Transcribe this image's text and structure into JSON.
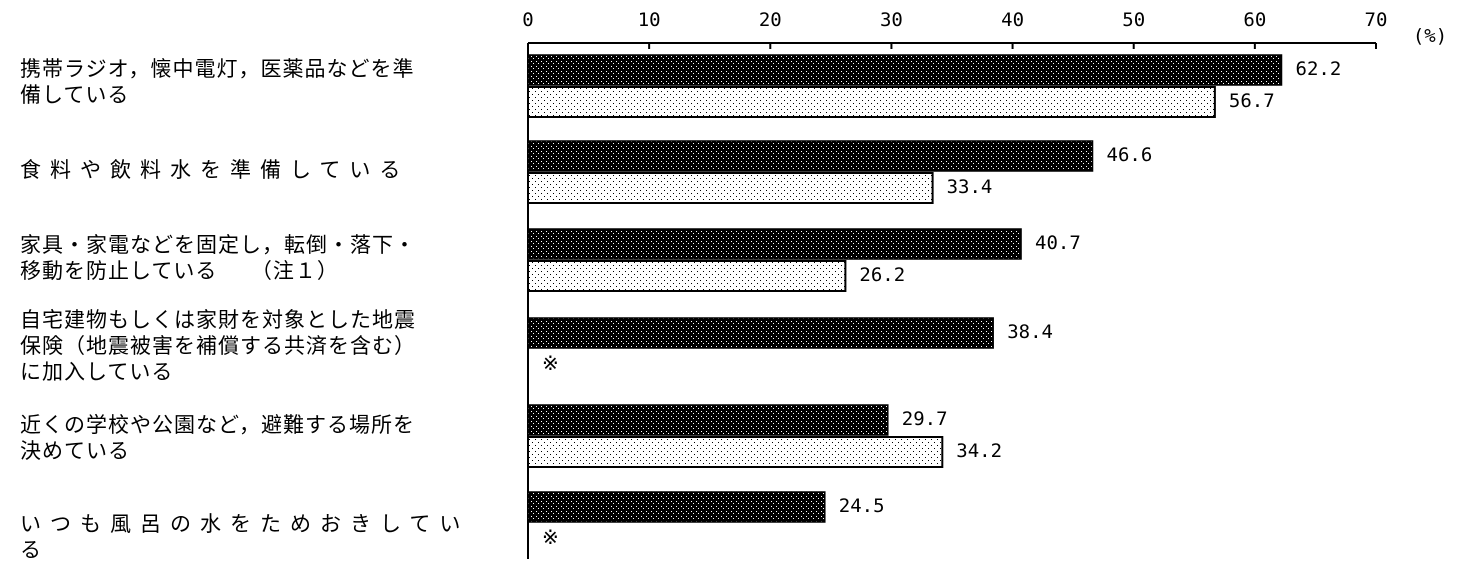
{
  "chart_data": {
    "type": "bar",
    "orientation": "horizontal",
    "unit_label": "(%)",
    "xlim": [
      0,
      70
    ],
    "x_ticks": [
      "0",
      "10",
      "20",
      "30",
      "40",
      "50",
      "60",
      "70"
    ],
    "categories": [
      "携帯ラジオ，懐中電灯，医薬品などを準\n備している",
      "食料や飲料水を準備している",
      "家具・家電などを固定し，転倒・落下・\n移動を防止している　　（注１）",
      "自宅建物もしくは家財を対象とした地震\n保険（地震被害を補償する共済を含む）\nに加入している",
      "近くの学校や公園など，避難する場所を\n決めている",
      "いつも風呂の水をためおきしている"
    ],
    "series": [
      {
        "pattern": "dark-dotted",
        "color": "#000000",
        "values": [
          62.2,
          46.6,
          40.7,
          38.4,
          29.7,
          24.5
        ],
        "value_labels": [
          "62.2",
          "46.6",
          "40.7",
          "38.4",
          "29.7",
          "24.5"
        ]
      },
      {
        "pattern": "light-dotted",
        "color": "#ffffff",
        "values": [
          56.7,
          33.4,
          26.2,
          null,
          34.2,
          null
        ],
        "value_labels": [
          "56.7",
          "33.4",
          "26.2",
          "※",
          "34.2",
          "※"
        ]
      }
    ]
  }
}
